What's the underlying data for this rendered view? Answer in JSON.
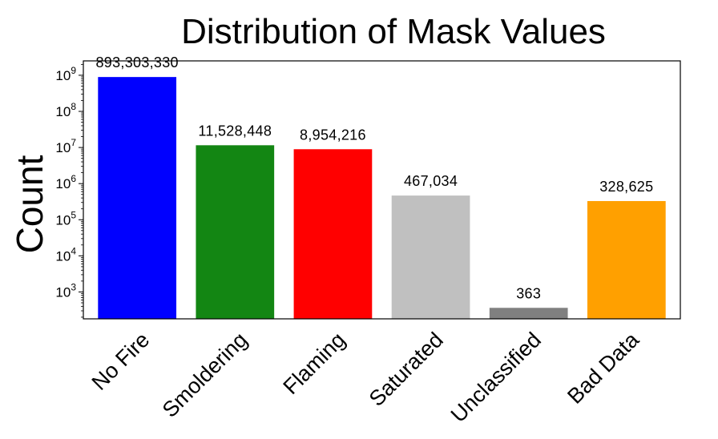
{
  "chart_data": {
    "type": "bar",
    "title": "Distribution of Mask Values",
    "xlabel": "",
    "ylabel": "Count",
    "yscale": "log",
    "ylim": [
      180,
      2500000000
    ],
    "y_ticks": [
      1000,
      10000,
      100000,
      1000000,
      10000000,
      100000000,
      1000000000
    ],
    "categories": [
      "No Fire",
      "Smoldering",
      "Flaming",
      "Saturated",
      "Unclassified",
      "Bad Data"
    ],
    "values": [
      893303330,
      11528448,
      8954216,
      467034,
      363,
      328625
    ],
    "data_labels": [
      "893,303,330",
      "11,528,448",
      "8,954,216",
      "467,034",
      "363",
      "328,625"
    ],
    "colors": [
      "#0000ff",
      "#138613",
      "#ff0000",
      "#c0c0c0",
      "#808080",
      "#ffa000"
    ],
    "grid": false,
    "legend": "none"
  }
}
